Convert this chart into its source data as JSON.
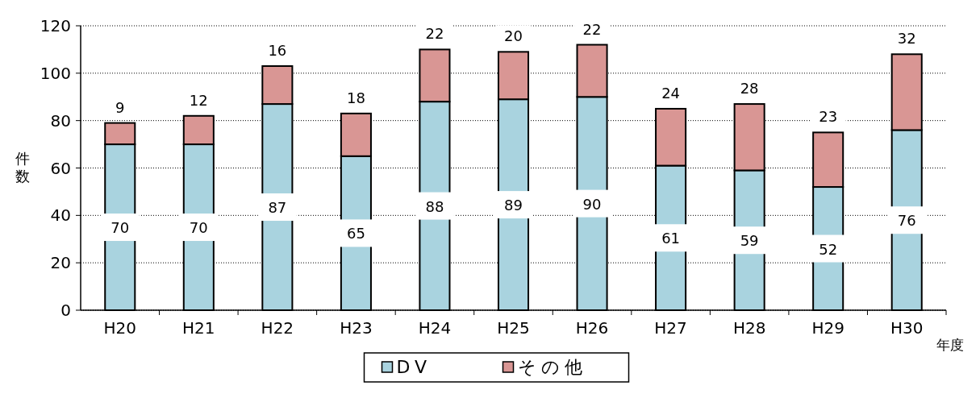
{
  "chart_data": {
    "type": "bar",
    "stacked": true,
    "xlabel": "年度",
    "ylabel": "件数",
    "categories": [
      "H20",
      "H21",
      "H22",
      "H23",
      "H24",
      "H25",
      "H26",
      "H27",
      "H28",
      "H29",
      "H30"
    ],
    "series": [
      {
        "name": "DV",
        "color": "#a9d3df",
        "values": [
          70,
          70,
          87,
          65,
          88,
          89,
          90,
          61,
          59,
          52,
          76
        ]
      },
      {
        "name": "その他",
        "color": "#d99694",
        "values": [
          9,
          12,
          16,
          18,
          22,
          20,
          22,
          24,
          28,
          23,
          32
        ]
      }
    ],
    "ylim": [
      0,
      120
    ],
    "yticks": [
      0,
      20,
      40,
      60,
      80,
      100,
      120
    ],
    "grid": "y",
    "legend": "bottom",
    "data_labels": true
  }
}
